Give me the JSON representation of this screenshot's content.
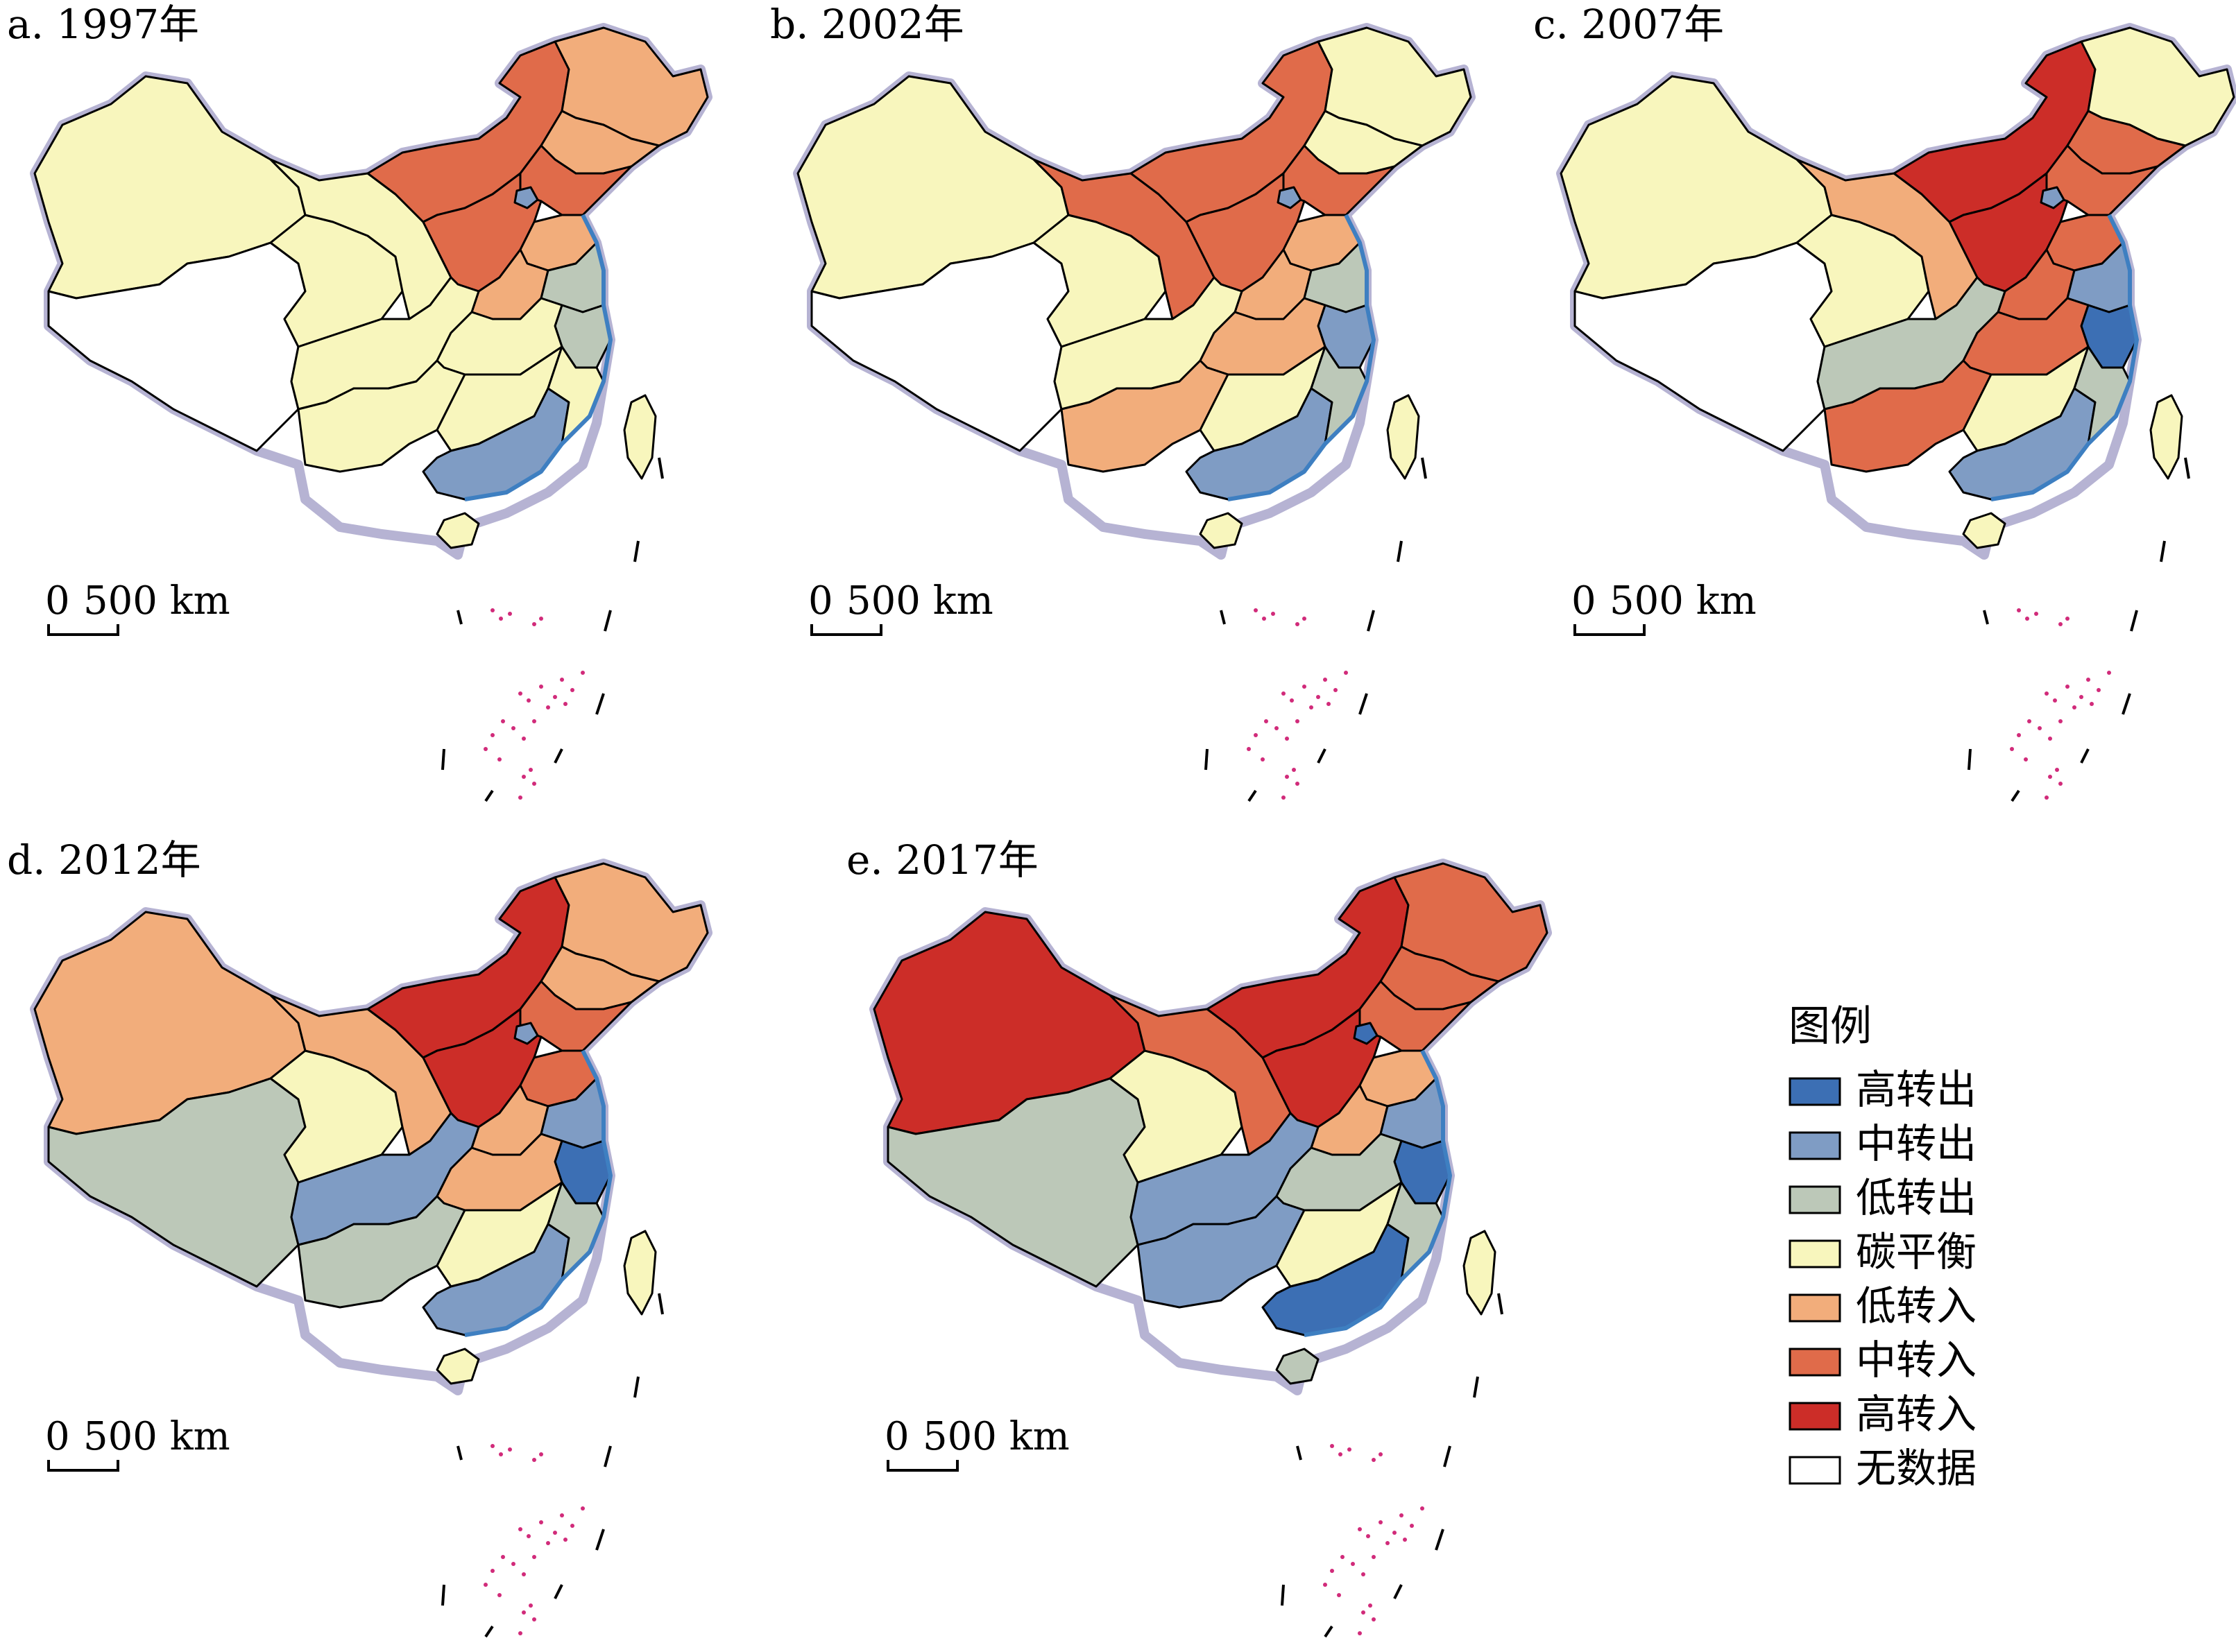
{
  "panels": [
    {
      "id": "a",
      "title": "a. 1997年",
      "scale": {
        "zero": "0",
        "label": "500 km"
      },
      "regions": {
        "xinjiang": "碳平衡",
        "tibet": "无数据",
        "qinghai": "碳平衡",
        "gansu": "碳平衡",
        "inner_mongolia": "中转入",
        "heilongjiang": "低转入",
        "jilin": "低转入",
        "liaoning": "中转入",
        "north_china": "中转入",
        "beijing": "中转出",
        "shandong": "低转入",
        "henan": "低转入",
        "jiangsu": "低转出",
        "zhejiang": "低转出",
        "sichuan": "碳平衡",
        "central": "碳平衡",
        "southwest": "碳平衡",
        "south": "碳平衡",
        "guangdong": "中转出",
        "fujian": "碳平衡",
        "taiwan": "碳平衡",
        "hainan": "碳平衡"
      }
    },
    {
      "id": "b",
      "title": "b. 2002年",
      "scale": {
        "zero": "0",
        "label": "500 km"
      },
      "regions": {
        "xinjiang": "碳平衡",
        "tibet": "无数据",
        "qinghai": "碳平衡",
        "gansu": "中转入",
        "inner_mongolia": "中转入",
        "heilongjiang": "碳平衡",
        "jilin": "碳平衡",
        "liaoning": "中转入",
        "north_china": "中转入",
        "beijing": "中转出",
        "shandong": "低转入",
        "henan": "低转入",
        "jiangsu": "低转出",
        "zhejiang": "中转出",
        "sichuan": "碳平衡",
        "central": "低转入",
        "southwest": "低转入",
        "south": "碳平衡",
        "guangdong": "中转出",
        "fujian": "低转出",
        "taiwan": "碳平衡",
        "hainan": "碳平衡"
      }
    },
    {
      "id": "c",
      "title": "c. 2007年",
      "scale": {
        "zero": "0",
        "label": "500 km"
      },
      "regions": {
        "xinjiang": "碳平衡",
        "tibet": "无数据",
        "qinghai": "碳平衡",
        "gansu": "低转入",
        "inner_mongolia": "高转入",
        "heilongjiang": "碳平衡",
        "jilin": "中转入",
        "liaoning": "中转入",
        "north_china": "高转入",
        "beijing": "中转出",
        "shandong": "中转入",
        "henan": "中转入",
        "jiangsu": "中转出",
        "zhejiang": "高转出",
        "sichuan": "低转出",
        "central": "中转入",
        "southwest": "中转入",
        "south": "碳平衡",
        "guangdong": "中转出",
        "fujian": "低转出",
        "taiwan": "碳平衡",
        "hainan": "碳平衡"
      }
    },
    {
      "id": "d",
      "title": "d. 2012年",
      "scale": {
        "zero": "0",
        "label": "500 km"
      },
      "regions": {
        "xinjiang": "低转入",
        "tibet": "低转出",
        "qinghai": "碳平衡",
        "gansu": "低转入",
        "inner_mongolia": "高转入",
        "heilongjiang": "低转入",
        "jilin": "低转入",
        "liaoning": "中转入",
        "north_china": "高转入",
        "beijing": "中转出",
        "shandong": "中转入",
        "henan": "低转入",
        "jiangsu": "中转出",
        "zhejiang": "高转出",
        "sichuan": "中转出",
        "central": "低转入",
        "southwest": "低转出",
        "south": "碳平衡",
        "guangdong": "中转出",
        "fujian": "低转出",
        "taiwan": "碳平衡",
        "hainan": "碳平衡"
      }
    },
    {
      "id": "e",
      "title": "e. 2017年",
      "scale": {
        "zero": "0",
        "label": "500 km"
      },
      "regions": {
        "xinjiang": "高转入",
        "tibet": "低转出",
        "qinghai": "碳平衡",
        "gansu": "中转入",
        "inner_mongolia": "高转入",
        "heilongjiang": "中转入",
        "jilin": "中转入",
        "liaoning": "中转入",
        "north_china": "高转入",
        "beijing": "高转出",
        "shandong": "低转入",
        "henan": "低转入",
        "jiangsu": "中转出",
        "zhejiang": "高转出",
        "sichuan": "中转出",
        "central": "低转出",
        "southwest": "中转出",
        "south": "碳平衡",
        "guangdong": "高转出",
        "fujian": "低转出",
        "taiwan": "碳平衡",
        "hainan": "低转出"
      }
    }
  ],
  "legend": {
    "title": "图例",
    "items": [
      {
        "label": "高转出",
        "color": "#3c6fb4"
      },
      {
        "label": "中转出",
        "color": "#7f9cc4"
      },
      {
        "label": "低转出",
        "color": "#bcc8b8"
      },
      {
        "label": "碳平衡",
        "color": "#f8f6bd"
      },
      {
        "label": "低转入",
        "color": "#f2ad7b"
      },
      {
        "label": "中转入",
        "color": "#e06b4a"
      },
      {
        "label": "高转入",
        "color": "#cc2d28"
      },
      {
        "label": "无数据",
        "color": "#ffffff"
      }
    ]
  }
}
